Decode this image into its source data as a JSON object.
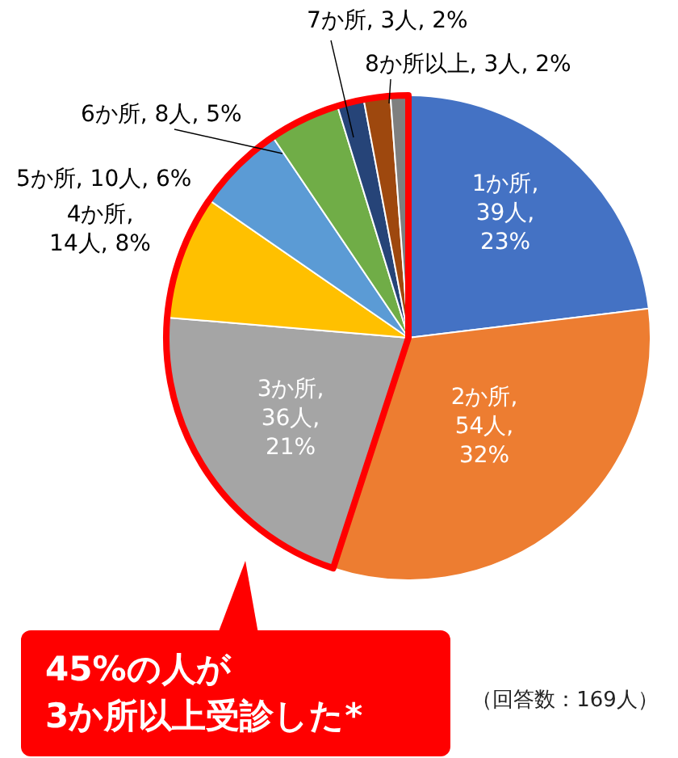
{
  "chart_data": {
    "type": "pie",
    "categories": [
      "1か所, 39人, 23%",
      "2か所, 54人, 32%",
      "3か所, 36人, 21%",
      "4か所, 14人, 8%",
      "5か所, 10人, 6%",
      "6か所, 8人, 5%",
      "7か所, 3人, 2%",
      "8か所以上, 3人, 2%",
      null
    ],
    "values": [
      39,
      54,
      36,
      14,
      10,
      8,
      3,
      3,
      2
    ],
    "colors": [
      "#4472c4",
      "#ed7d31",
      "#a5a5a5",
      "#ffc000",
      "#5b9bd5",
      "#70ad47",
      "#264478",
      "#9e480e",
      "#7f7f7f"
    ],
    "annotations": [
      "45%の人が\n3か所以上受診した*",
      "（回答数：169人）"
    ]
  }
}
